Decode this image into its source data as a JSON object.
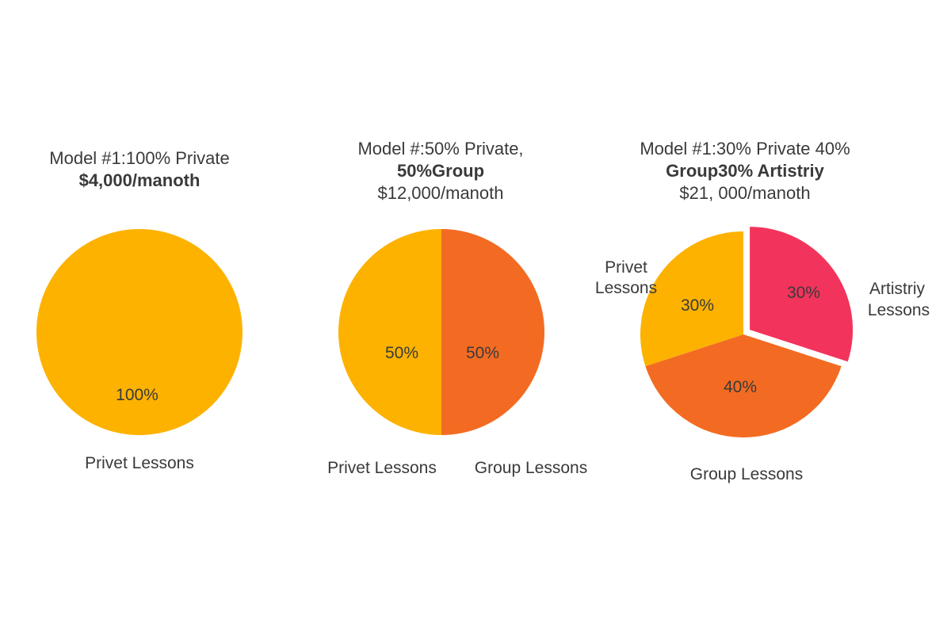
{
  "colors": {
    "private": "#FDB200",
    "group": "#F36B22",
    "artistry": "#F2345C"
  },
  "charts": [
    {
      "title_lines": [
        "Model #1:100%  Private",
        "$4,000/manoth"
      ],
      "labels": [
        "Privet Lessons"
      ]
    },
    {
      "title_lines": [
        "Model #:50%  Private,",
        "50%Group",
        "$12,000/manoth"
      ],
      "labels": [
        "Privet Lessons",
        "Group Lessons"
      ]
    },
    {
      "title_lines": [
        "Model #1:30%  Private 40%",
        "Group30% Artistriy",
        "$21, 000/manoth"
      ],
      "labels": [
        "Privet",
        "Lessons",
        "Artistriy",
        "Lessons",
        "Group Lessons"
      ]
    }
  ],
  "chart_data": [
    {
      "type": "pie",
      "title": "Model #1:100%  Private $4,000/manoth",
      "slices": [
        {
          "label": "Privet Lessons",
          "value": 100,
          "display": "100%"
        }
      ]
    },
    {
      "type": "pie",
      "title": "Model #:50%  Private, 50%Group $12,000/manoth",
      "slices": [
        {
          "label": "Privet Lessons",
          "value": 50,
          "display": "50%"
        },
        {
          "label": "Group Lessons",
          "value": 50,
          "display": "50%"
        }
      ]
    },
    {
      "type": "pie",
      "title": "Model #1:30%  Private 40% Group30% Artistriy $21, 000/manoth",
      "slices": [
        {
          "label": "Privet Lessons",
          "value": 30,
          "display": "30%"
        },
        {
          "label": "Artistriy Lessons",
          "value": 30,
          "display": "30%",
          "exploded": true
        },
        {
          "label": "Group Lessons",
          "value": 40,
          "display": "40%"
        }
      ]
    }
  ]
}
